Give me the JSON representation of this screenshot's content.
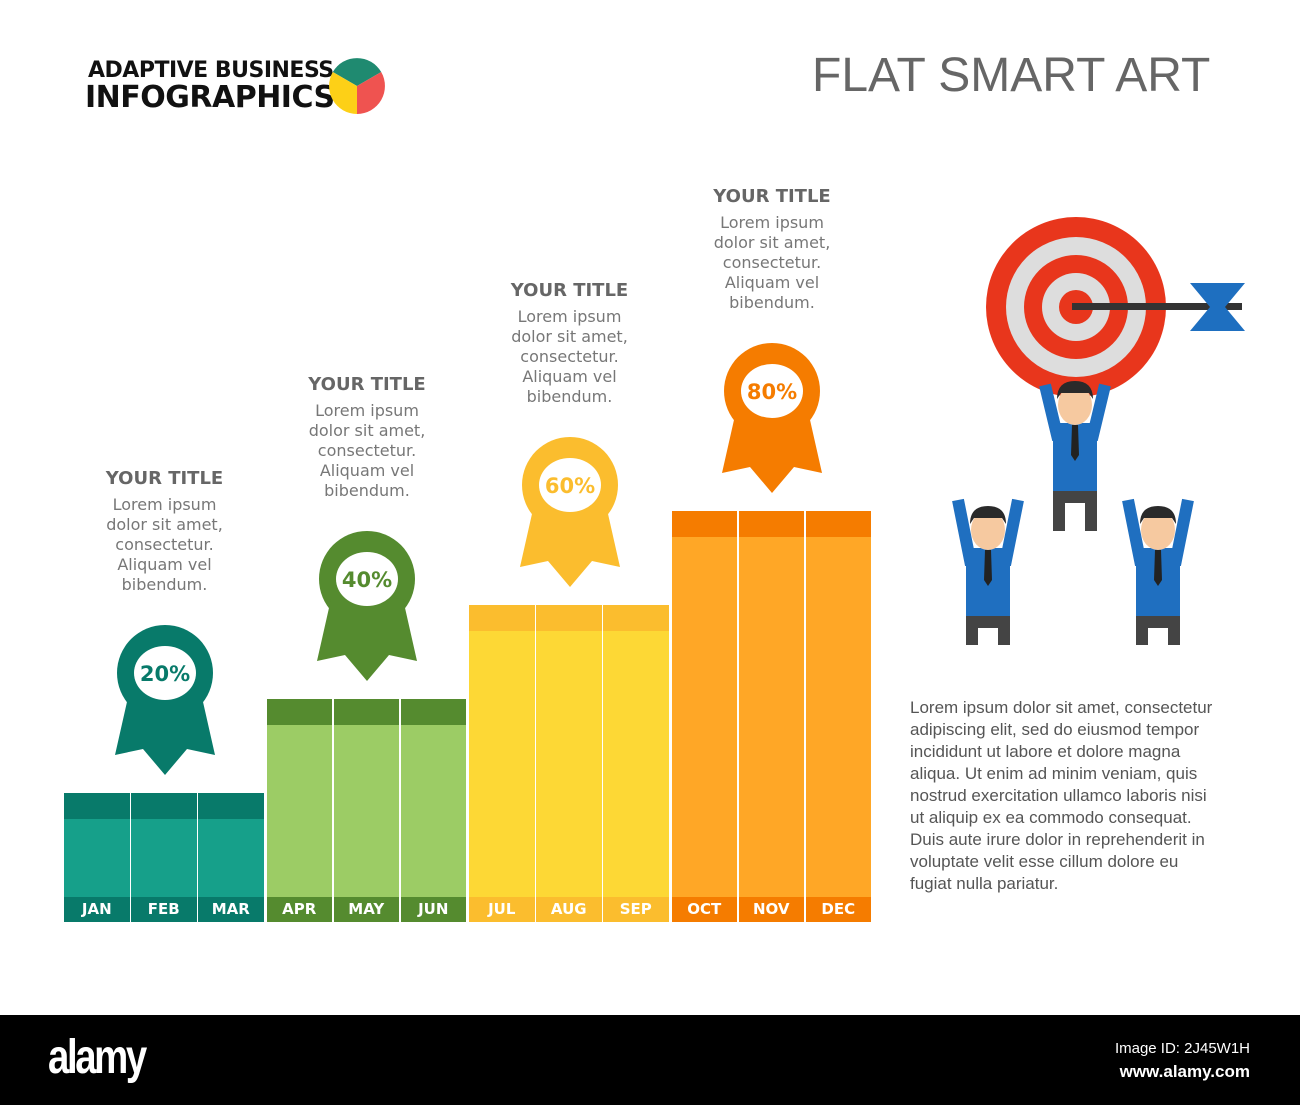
{
  "header": {
    "brand_line1": "ADAPTIVE BUSINESS",
    "brand_line2": "INFOGRAPHICS",
    "title": "FLAT SMART ART"
  },
  "chart_data": {
    "type": "bar",
    "categories": [
      "JAN",
      "FEB",
      "MAR",
      "APR",
      "MAY",
      "JUN",
      "JUL",
      "AUG",
      "SEP",
      "OCT",
      "NOV",
      "DEC"
    ],
    "quarters": [
      {
        "value": 20,
        "label": "20%",
        "title": "YOUR TITLE",
        "text": [
          "Lorem ipsum",
          "dolor sit amet,",
          "consectetur.",
          "Aliquam vel",
          "bibendum."
        ],
        "color": "#16a08a",
        "dark": "#087a6a"
      },
      {
        "value": 40,
        "label": "40%",
        "title": "YOUR TITLE",
        "text": [
          "Lorem ipsum",
          "dolor sit amet,",
          "consectetur.",
          "Aliquam vel",
          "bibendum."
        ],
        "color": "#9ccc65",
        "dark": "#558b2f"
      },
      {
        "value": 60,
        "label": "60%",
        "title": "YOUR TITLE",
        "text": [
          "Lorem ipsum",
          "dolor sit amet,",
          "consectetur.",
          "Aliquam vel",
          "bibendum."
        ],
        "color": "#fdd835",
        "dark": "#fbbd2e"
      },
      {
        "value": 80,
        "label": "80%",
        "title": "YOUR TITLE",
        "text": [
          "Lorem ipsum",
          "dolor sit amet,",
          "consectetur.",
          "Aliquam vel",
          "bibendum."
        ],
        "color": "#ffa726",
        "dark": "#f57c00"
      }
    ]
  },
  "paragraph": [
    "Lorem ipsum dolor sit amet, consectetur",
    "adipiscing elit, sed do eiusmod tempor",
    "incididunt ut labore et dolore magna",
    "aliqua. Ut enim ad minim veniam, quis",
    "nostrud exercitation ullamco laboris nisi",
    "ut aliquip ex ea commodo consequat.",
    "Duis aute irure dolor in reprehenderit in",
    "voluptate velit esse cillum dolore eu",
    "fugiat nulla pariatur."
  ],
  "footer": {
    "logo": "alamy",
    "image_id": "Image ID: 2J45W1H",
    "url": "www.alamy.com"
  },
  "icons": {
    "logo_pie": "pie-chart-icon",
    "illustration": "target-arrow-teamwork-icon"
  }
}
